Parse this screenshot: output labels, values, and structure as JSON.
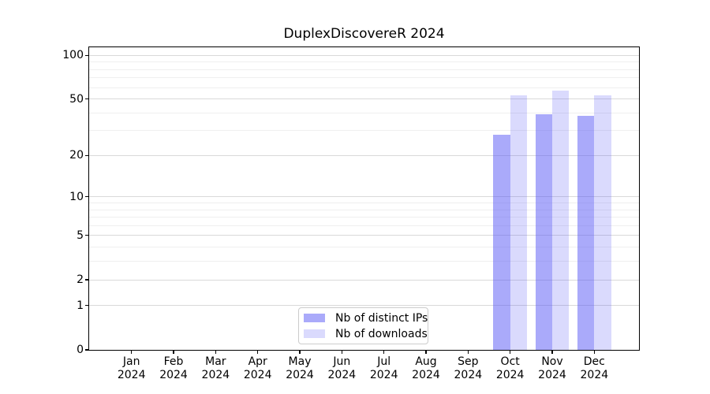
{
  "chart": {
    "title": "DuplexDiscovereR 2024"
  },
  "chart_data": {
    "type": "bar",
    "title": "DuplexDiscovereR 2024",
    "categories": [
      "Jan 2024",
      "Feb 2024",
      "Mar 2024",
      "Apr 2024",
      "May 2024",
      "Jun 2024",
      "Jul 2024",
      "Aug 2024",
      "Sep 2024",
      "Oct 2024",
      "Nov 2024",
      "Dec 2024"
    ],
    "series": [
      {
        "name": "Nb of distinct IPs",
        "values": [
          0,
          0,
          0,
          0,
          0,
          0,
          0,
          0,
          0,
          28,
          39,
          38
        ]
      },
      {
        "name": "Nb of downloads",
        "values": [
          0,
          0,
          0,
          0,
          0,
          0,
          0,
          0,
          0,
          53,
          57,
          53
        ]
      }
    ],
    "xlabel": "",
    "ylabel": "",
    "yscale": "log1p",
    "ylim": [
      0,
      114
    ],
    "y_ticks": [
      100,
      50,
      20,
      10,
      5,
      2,
      1,
      0
    ],
    "y_minor_gridlines": [
      3,
      4,
      6,
      7,
      8,
      9,
      30,
      40,
      60,
      70,
      80,
      90
    ],
    "grid": true,
    "legend_position": "lower center"
  },
  "colors": {
    "bar_ips": "rgba(85,85,245,0.5)",
    "bar_downloads": "rgba(85,85,245,0.22)",
    "grid_major": "#d9d9d9",
    "grid_minor": "#efefef",
    "spine": "#000000",
    "legend_border": "#cccccc"
  }
}
